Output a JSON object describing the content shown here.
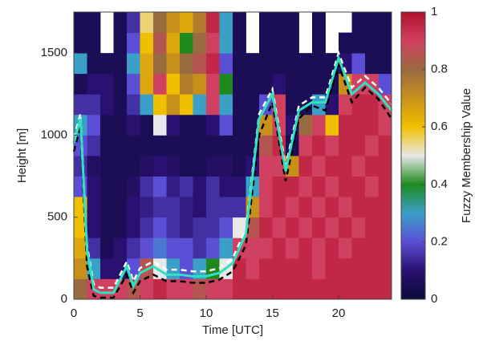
{
  "chart_data": {
    "type": "heatmap",
    "x_label": "Time [UTC]",
    "y_label": "Height [m]",
    "colorbar_label": "Fuzzy Membership Value",
    "xbins": [
      0,
      1,
      2,
      3,
      4,
      5,
      6,
      7,
      8,
      9,
      10,
      11,
      12,
      13,
      14,
      15,
      16,
      17,
      18,
      19,
      20,
      21,
      22,
      23,
      24
    ],
    "ybins": [
      0,
      125,
      250,
      375,
      500,
      625,
      750,
      875,
      1000,
      1125,
      1250,
      1375,
      1500,
      1625,
      1750
    ],
    "values": [
      [
        0.8,
        0.9,
        0.9,
        0.9,
        0.85,
        0.9,
        0.95,
        0.9,
        0.9,
        0.85,
        0.9,
        0.9,
        0.95,
        0.95,
        0.95,
        0.95,
        0.95,
        0.95,
        0.95,
        0.95,
        0.95,
        0.95,
        0.95,
        0.95
      ],
      [
        0.7,
        0.3,
        0.1,
        0.1,
        0.2,
        0.85,
        0.5,
        0.3,
        0.2,
        0.3,
        0.4,
        0.5,
        0.95,
        0.9,
        0.95,
        0.95,
        0.95,
        0.95,
        0.9,
        0.95,
        0.95,
        0.95,
        0.95,
        0.95
      ],
      [
        0.65,
        0.15,
        0.05,
        0.1,
        0.15,
        0.2,
        0.25,
        0.2,
        0.2,
        0.15,
        0.2,
        0.3,
        0.9,
        0.9,
        0.9,
        0.95,
        0.9,
        0.95,
        0.9,
        0.95,
        0.9,
        0.95,
        0.95,
        0.95
      ],
      [
        0.6,
        0.1,
        0.05,
        0.05,
        0.1,
        0.15,
        0.2,
        0.15,
        0.12,
        0.15,
        0.15,
        0.2,
        0.5,
        0.85,
        0.95,
        0.9,
        0.95,
        0.9,
        0.95,
        0.9,
        0.95,
        0.9,
        0.95,
        0.95
      ],
      [
        0.6,
        0.1,
        0.05,
        0.05,
        0.1,
        0.12,
        0.15,
        0.15,
        0.12,
        0.1,
        0.15,
        0.15,
        0.15,
        0.7,
        0.9,
        0.95,
        0.9,
        0.95,
        0.9,
        0.95,
        0.9,
        0.95,
        0.95,
        0.95
      ],
      [
        0.2,
        0.1,
        0.05,
        0.05,
        0.08,
        0.15,
        0.2,
        0.12,
        0.15,
        0.1,
        0.15,
        0.1,
        0.1,
        0.3,
        0.9,
        0.95,
        0.95,
        0.9,
        0.95,
        0.9,
        0.95,
        0.95,
        0.9,
        0.95
      ],
      [
        0.15,
        0.08,
        0.05,
        0.05,
        0.05,
        0.08,
        0.1,
        0.08,
        0.05,
        0.05,
        0.08,
        0.08,
        0.05,
        0.1,
        0.9,
        0.9,
        0.7,
        0.95,
        0.9,
        0.95,
        0.95,
        0.9,
        0.95,
        0.95
      ],
      [
        0.2,
        0.15,
        0.05,
        0.05,
        0.05,
        0.05,
        0.05,
        0.05,
        0.05,
        0.05,
        0.05,
        0.05,
        0.05,
        0.05,
        0.85,
        0.95,
        0.05,
        0.9,
        0.95,
        0.9,
        0.95,
        0.95,
        0.9,
        0.95
      ],
      [
        0.3,
        0.2,
        0.05,
        0.05,
        0.1,
        0.05,
        0.5,
        0.1,
        0.05,
        0.05,
        0.1,
        0.2,
        0.05,
        0.05,
        0.7,
        0.9,
        0.1,
        0.8,
        0.9,
        0.6,
        0.95,
        0.95,
        0.95,
        0.9
      ],
      [
        0.15,
        0.15,
        0.1,
        0.05,
        0.15,
        0.3,
        0.6,
        0.7,
        0.6,
        0.3,
        0.9,
        0.3,
        0.05,
        0.05,
        0.2,
        0.9,
        0.05,
        0.05,
        0.3,
        0.1,
        0.9,
        0.95,
        0.95,
        0.9
      ],
      [
        0.05,
        0.1,
        0.1,
        0.05,
        0.2,
        0.65,
        0.9,
        0.6,
        0.75,
        0.7,
        0.9,
        0.4,
        0.05,
        0.05,
        0.05,
        0.1,
        0.05,
        0.05,
        0.05,
        0.05,
        0.7,
        0.9,
        0.9,
        0.2
      ],
      [
        0.3,
        0.05,
        0.05,
        0.05,
        0.3,
        0.65,
        0.8,
        0.7,
        0.8,
        0.85,
        0.95,
        0.2,
        0.05,
        0.05,
        0.05,
        0.05,
        0.05,
        0.05,
        0.05,
        0.05,
        0.1,
        0.2,
        0.05,
        0.05
      ],
      [
        0.05,
        0.05,
        null,
        0.05,
        0.2,
        0.6,
        0.85,
        0.65,
        0.4,
        0.8,
        0.9,
        0.3,
        0.05,
        null,
        0.05,
        0.05,
        0.05,
        null,
        0.05,
        null,
        0.05,
        0.05,
        0.05,
        0.05
      ],
      [
        0.05,
        0.05,
        null,
        0.05,
        0.15,
        0.55,
        0.8,
        0.7,
        0.65,
        0.75,
        0.95,
        0.3,
        0.05,
        null,
        0.05,
        0.05,
        0.05,
        null,
        0.05,
        null,
        null,
        0.05,
        0.05,
        0.05
      ]
    ],
    "colormap": [
      "#0b0b3b",
      "#2a1070",
      "#5b4fd6",
      "#3aa0c8",
      "#1e8a1e",
      "#e8e8e8",
      "#f0c000",
      "#c8901a",
      "#9a6a40",
      "#d04060",
      "#b0102a"
    ],
    "clim": [
      0,
      1
    ],
    "cticks": [
      0,
      0.2,
      0.4,
      0.6,
      0.8,
      1
    ],
    "xlim": [
      0,
      24
    ],
    "xticks": [
      0,
      5,
      10,
      15,
      20
    ],
    "ylim": [
      0,
      1750
    ],
    "yticks": [
      0,
      500,
      1000,
      1500
    ],
    "x": [
      0,
      0.5,
      1,
      1.5,
      2,
      3,
      4,
      4.5,
      5,
      6,
      7,
      8,
      9,
      10,
      11,
      12,
      13,
      14,
      15,
      16,
      17,
      18,
      19,
      20,
      21,
      22,
      23,
      24
    ],
    "series": [
      {
        "color": "#000000",
        "dash": true,
        "values": [
          900,
          1050,
          200,
          20,
          10,
          10,
          150,
          40,
          110,
          150,
          110,
          110,
          100,
          100,
          120,
          170,
          330,
          1000,
          1200,
          720,
          1100,
          1180,
          1150,
          1430,
          1200,
          1290,
          1220,
          1100
        ]
      },
      {
        "color": "#ffffff",
        "dash": true,
        "values": [
          980,
          1130,
          330,
          90,
          70,
          70,
          230,
          110,
          190,
          230,
          180,
          180,
          170,
          170,
          190,
          250,
          430,
          1130,
          1280,
          810,
          1180,
          1230,
          1230,
          1500,
          1290,
          1360,
          1290,
          1190
        ]
      },
      {
        "color": "#30e0c0",
        "dash": false,
        "values": [
          950,
          1100,
          300,
          60,
          40,
          40,
          200,
          80,
          160,
          200,
          150,
          150,
          140,
          140,
          160,
          220,
          400,
          1100,
          1250,
          780,
          1150,
          1200,
          1200,
          1470,
          1250,
          1320,
          1250,
          1150
        ]
      }
    ]
  }
}
